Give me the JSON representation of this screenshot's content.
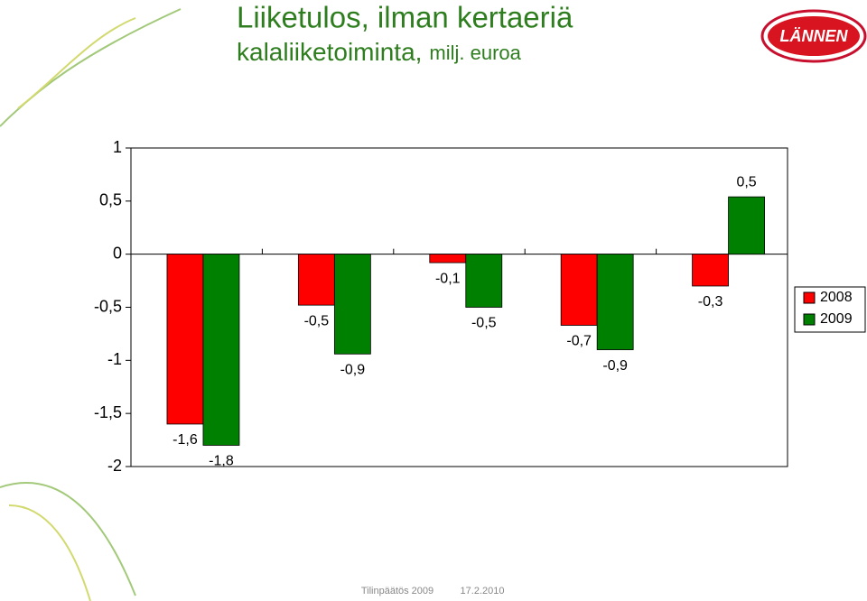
{
  "chart_data": {
    "type": "bar",
    "title": "Liiketulos, ilman kertaeriä",
    "subtitle": "kalaliiketoiminta,",
    "unit": "milj. euroa",
    "logo": "LÄNNEN",
    "footer": [
      "Tilinpäätös 2009",
      "17.2.2010"
    ],
    "categories": [
      null,
      null,
      null,
      null,
      null
    ],
    "series": [
      {
        "name": "2008",
        "color": "#ff0000",
        "values": [
          -1.6,
          -0.48,
          -0.08,
          -0.67,
          -0.3
        ],
        "value_labels": [
          "-1,6",
          "-0,5",
          "-0,1",
          "-0,7",
          "-0,3"
        ]
      },
      {
        "name": "2009",
        "color": "#008000",
        "values": [
          -1.8,
          -0.94,
          -0.5,
          -0.9,
          0.54
        ],
        "value_labels": [
          "-1,8",
          "-0,9",
          "-0,5",
          "-0,9",
          "0,5"
        ]
      }
    ],
    "ylim": [
      -2,
      1
    ],
    "yticks": [
      -2,
      {
        "value": -1.5,
        "label": "-1,5"
      },
      -1,
      {
        "value": -0.5,
        "label": "-0,5"
      },
      0,
      {
        "value": 0.5,
        "label": "0,5"
      },
      1
    ],
    "legend": "right"
  }
}
